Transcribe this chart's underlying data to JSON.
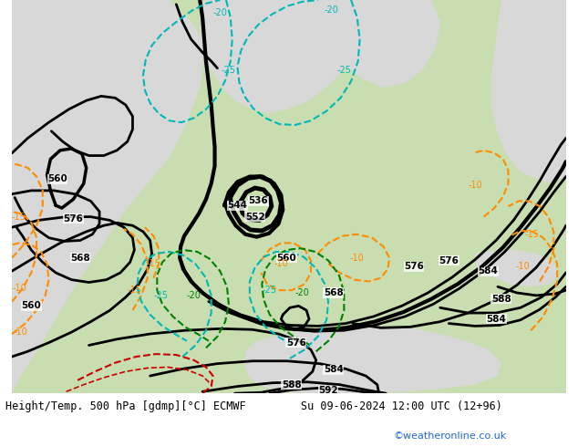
{
  "title_left": "Height/Temp. 500 hPa [gdmp][°C] ECMWF",
  "title_right": "Su 09-06-2024 12:00 UTC (12+96)",
  "watermark": "©weatheronline.co.uk",
  "land_color": "#c8deb0",
  "sea_color": "#d8d8d8",
  "height_color": "#000000",
  "orange_color": "#ff8c00",
  "cyan_color": "#00b8b8",
  "green_color": "#008000",
  "red_color": "#cc0000",
  "fig_width": 6.34,
  "fig_height": 4.9,
  "dpi": 100
}
